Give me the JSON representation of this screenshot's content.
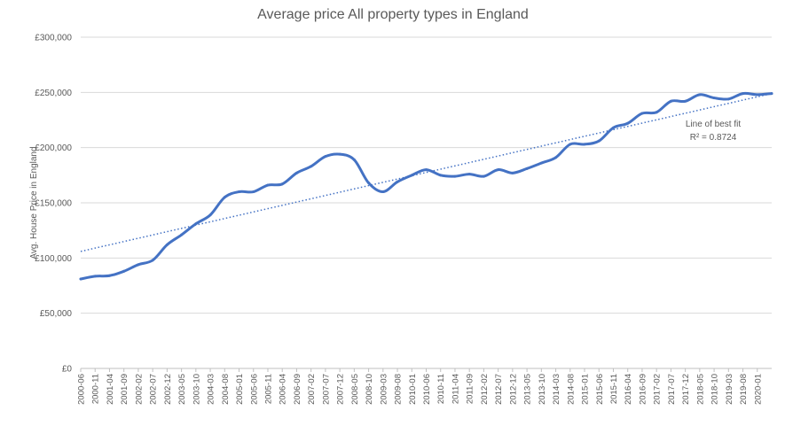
{
  "chart_data": {
    "type": "line",
    "title": "Average price All property types in England",
    "xlabel": "",
    "ylabel": "Avg. House Price in England",
    "ylim": [
      0,
      300000
    ],
    "yticks": [
      0,
      50000,
      100000,
      150000,
      200000,
      250000,
      300000
    ],
    "ytick_labels": [
      "£0",
      "£50,000",
      "£100,000",
      "£150,000",
      "£200,000",
      "£250,000",
      "£300,000"
    ],
    "x_start": "2000-06",
    "x_end": "2020-06",
    "xtick_labels": [
      "2000-06",
      "2000-11",
      "2001-04",
      "2001-09",
      "2002-02",
      "2002-07",
      "2002-12",
      "2003-05",
      "2003-10",
      "2004-03",
      "2004-08",
      "2005-01",
      "2005-06",
      "2005-11",
      "2006-04",
      "2006-09",
      "2007-02",
      "2007-07",
      "2007-12",
      "2008-05",
      "2008-10",
      "2009-03",
      "2009-08",
      "2010-01",
      "2010-06",
      "2010-11",
      "2011-04",
      "2011-09",
      "2012-02",
      "2012-07",
      "2012-12",
      "2013-05",
      "2013-10",
      "2014-03",
      "2014-08",
      "2015-01",
      "2015-06",
      "2015-11",
      "2016-04",
      "2016-09",
      "2017-02",
      "2017-07",
      "2017-12",
      "2018-05",
      "2018-10",
      "2019-03",
      "2019-08",
      "2020-01"
    ],
    "grid": true,
    "legend": "none",
    "series": [
      {
        "color": "#4472C4",
        "points": [
          [
            "2000-06",
            81000
          ],
          [
            "2000-11",
            83500
          ],
          [
            "2001-04",
            84000
          ],
          [
            "2001-09",
            88000
          ],
          [
            "2002-02",
            94000
          ],
          [
            "2002-07",
            98000
          ],
          [
            "2002-12",
            112000
          ],
          [
            "2003-05",
            121000
          ],
          [
            "2003-10",
            131000
          ],
          [
            "2004-03",
            139000
          ],
          [
            "2004-08",
            155000
          ],
          [
            "2005-01",
            160000
          ],
          [
            "2005-06",
            160000
          ],
          [
            "2005-11",
            166000
          ],
          [
            "2006-04",
            167000
          ],
          [
            "2006-09",
            177000
          ],
          [
            "2007-02",
            183000
          ],
          [
            "2007-07",
            192000
          ],
          [
            "2007-12",
            194000
          ],
          [
            "2008-05",
            189000
          ],
          [
            "2008-10",
            168000
          ],
          [
            "2009-03",
            160000
          ],
          [
            "2009-08",
            169000
          ],
          [
            "2010-01",
            175000
          ],
          [
            "2010-06",
            180000
          ],
          [
            "2010-11",
            175000
          ],
          [
            "2011-04",
            174000
          ],
          [
            "2011-09",
            176000
          ],
          [
            "2012-02",
            174000
          ],
          [
            "2012-07",
            180000
          ],
          [
            "2012-12",
            177000
          ],
          [
            "2013-05",
            181000
          ],
          [
            "2013-10",
            186000
          ],
          [
            "2014-03",
            191000
          ],
          [
            "2014-08",
            203000
          ],
          [
            "2015-01",
            203000
          ],
          [
            "2015-06",
            206000
          ],
          [
            "2015-11",
            218000
          ],
          [
            "2016-04",
            222000
          ],
          [
            "2016-09",
            231000
          ],
          [
            "2017-02",
            232000
          ],
          [
            "2017-07",
            242000
          ],
          [
            "2017-12",
            242000
          ],
          [
            "2018-05",
            248000
          ],
          [
            "2018-10",
            245000
          ],
          [
            "2019-03",
            244000
          ],
          [
            "2019-08",
            249000
          ],
          [
            "2020-01",
            248000
          ],
          [
            "2020-06",
            249000
          ]
        ]
      }
    ],
    "trendline": {
      "color": "#4472C4",
      "from": [
        "2000-06",
        106000
      ],
      "to": [
        "2020-06",
        249000
      ],
      "label": "Line of best fit",
      "r2_label": "R² = 0.8724"
    }
  }
}
